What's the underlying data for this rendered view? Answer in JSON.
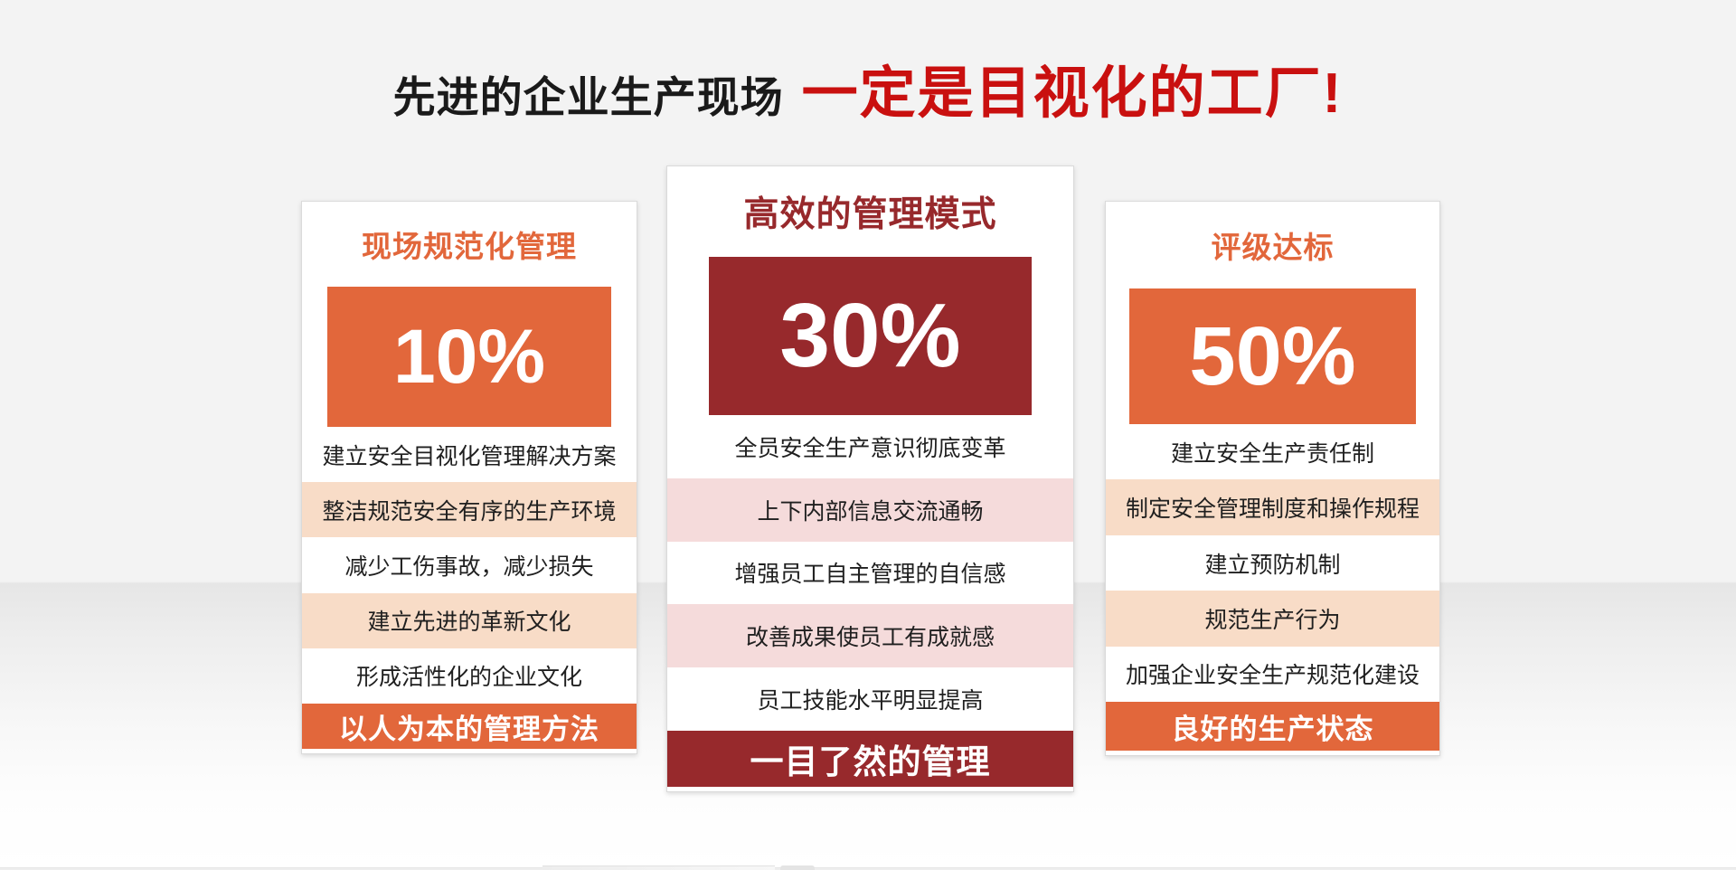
{
  "title": {
    "prefix": "先进的企业生产现场",
    "emphasis": "一定是目视化的工厂!"
  },
  "cards": [
    {
      "title": "现场规范化管理",
      "percent": "10%",
      "items": [
        "建立安全目视化管理解决方案",
        "整洁规范安全有序的生产环境",
        "减少工伤事故，减少损失",
        "建立先进的革新文化",
        "形成活性化的企业文化"
      ],
      "footer": "以人为本的管理方法"
    },
    {
      "title": "高效的管理模式",
      "percent": "30%",
      "items": [
        "全员安全生产意识彻底变革",
        "上下内部信息交流通畅",
        "增强员工自主管理的自信感",
        "改善成果使员工有成就感",
        "员工技能水平明显提高"
      ],
      "footer": "一目了然的管理"
    },
    {
      "title": "评级达标",
      "percent": "50%",
      "items": [
        "建立安全生产责任制",
        "制定安全管理制度和操作规程",
        "建立预防机制",
        "规范生产行为",
        "加强企业安全生产规范化建设"
      ],
      "footer": "良好的生产状态"
    }
  ],
  "colors": {
    "orange": "#E2673B",
    "orange_tint": "#F8DCC7",
    "dark_red": "#97292C",
    "red_tint": "#F5DBDB",
    "title_red": "#C9100F",
    "text": "#1F1F1F"
  }
}
